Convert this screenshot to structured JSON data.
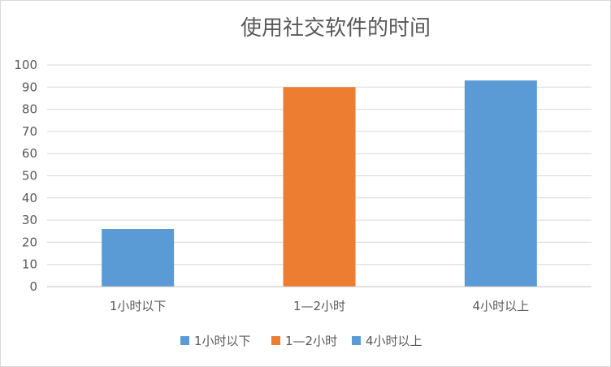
{
  "chart_data": {
    "type": "bar",
    "title": "使用社交软件的时间",
    "categories": [
      "1小时以下",
      "1—2小时",
      "4小时以上"
    ],
    "values": [
      26,
      90,
      93
    ],
    "bar_colors": [
      "#5b9bd5",
      "#ed7d31",
      "#5b9bd5"
    ],
    "ylim": [
      0,
      100
    ],
    "yticks": [
      0,
      10,
      20,
      30,
      40,
      50,
      60,
      70,
      80,
      90,
      100
    ],
    "grid": true,
    "legend": {
      "placement": "bottom",
      "entries": [
        {
          "label": "1小时以下",
          "color": "#5b9bd5"
        },
        {
          "label": "1—2小时",
          "color": "#ed7d31"
        },
        {
          "label": "4小时以上",
          "color": "#5b9bd5"
        }
      ]
    }
  }
}
